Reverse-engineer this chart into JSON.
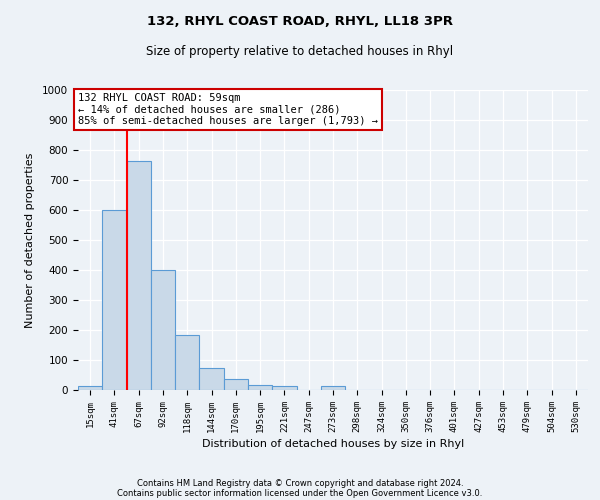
{
  "title1": "132, RHYL COAST ROAD, RHYL, LL18 3PR",
  "title2": "Size of property relative to detached houses in Rhyl",
  "xlabel": "Distribution of detached houses by size in Rhyl",
  "ylabel": "Number of detached properties",
  "bar_labels": [
    "15sqm",
    "41sqm",
    "67sqm",
    "92sqm",
    "118sqm",
    "144sqm",
    "170sqm",
    "195sqm",
    "221sqm",
    "247sqm",
    "273sqm",
    "298sqm",
    "324sqm",
    "350sqm",
    "376sqm",
    "401sqm",
    "427sqm",
    "453sqm",
    "479sqm",
    "504sqm",
    "530sqm"
  ],
  "bar_values": [
    15,
    600,
    765,
    400,
    185,
    75,
    38,
    18,
    14,
    0,
    12,
    0,
    0,
    0,
    0,
    0,
    0,
    0,
    0,
    0,
    0
  ],
  "ylim": [
    0,
    1000
  ],
  "yticks": [
    0,
    100,
    200,
    300,
    400,
    500,
    600,
    700,
    800,
    900,
    1000
  ],
  "bar_color": "#c9d9e8",
  "bar_edge_color": "#5b9bd5",
  "redline_x": 1.5,
  "annotation_text": "132 RHYL COAST ROAD: 59sqm\n← 14% of detached houses are smaller (286)\n85% of semi-detached houses are larger (1,793) →",
  "annotation_box_color": "#ffffff",
  "annotation_box_edgecolor": "#cc0000",
  "footer1": "Contains HM Land Registry data © Crown copyright and database right 2024.",
  "footer2": "Contains public sector information licensed under the Open Government Licence v3.0.",
  "background_color": "#edf2f7",
  "plot_bg_color": "#edf2f7",
  "grid_color": "#d8e4f0"
}
